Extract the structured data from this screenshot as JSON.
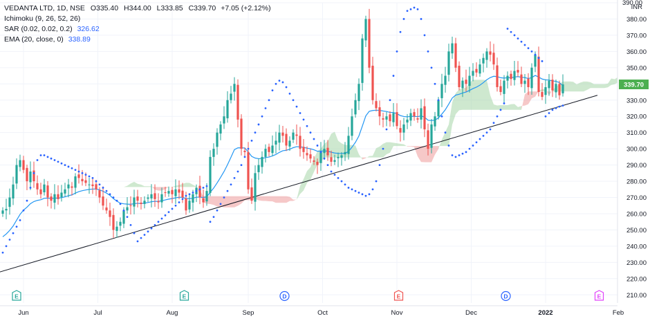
{
  "legend": {
    "symbol": "VEDANTA LTD, 1D, NSE",
    "ohlc": [
      {
        "label": "O",
        "value": "335.40"
      },
      {
        "label": "H",
        "value": "344.00"
      },
      {
        "label": "L",
        "value": "333.85"
      },
      {
        "label": "C",
        "value": "339.70"
      }
    ],
    "change": "+7.05 (+2.12%)",
    "ichimoku_label": "Ichimoku (9, 26, 52, 26)",
    "sar_label": "SAR (0.02, 0.02, 0.2)",
    "sar_value": "326.62",
    "ema_label": "EMA (20, close, 0)",
    "ema_value": "338.89"
  },
  "chart_data": {
    "type": "candlestick",
    "currency": "INR",
    "ylim": [
      205,
      390
    ],
    "y_ticks": [
      "210.00",
      "220.00",
      "230.00",
      "240.00",
      "250.00",
      "260.00",
      "270.00",
      "280.00",
      "290.00",
      "300.00",
      "310.00",
      "320.00",
      "330.00",
      "340.00",
      "350.00",
      "360.00",
      "370.00",
      "380.00",
      "390.00"
    ],
    "x_ticks": [
      "Jun",
      "Jul",
      "Aug",
      "Sep",
      "Oct",
      "Nov",
      "Dec",
      "2022",
      "Feb"
    ],
    "x_tick_pos": [
      6,
      27.5,
      49,
      71,
      92.5,
      114,
      135.5,
      157,
      178
    ],
    "last_price_label": "339.70",
    "colors": {
      "up": "#26a69a",
      "down": "#ef5350",
      "ema": "#2196f3",
      "sar": "#2962ff",
      "cloud_bull": "#a5d6a7",
      "cloud_bear": "#ef9a9a",
      "trendline": "#131722",
      "last_price": "#4caf50",
      "event_earnings": "#26a69a",
      "event_dividend": "#2962ff",
      "event_earnings_down": "#ef5350",
      "event_future": "#e040fb"
    },
    "closes": [
      262,
      263,
      270,
      278,
      290,
      293,
      287,
      280,
      286,
      280,
      275,
      272,
      278,
      270,
      268,
      272,
      269,
      273,
      275,
      278,
      276,
      283,
      282,
      280,
      279,
      278,
      277,
      275,
      270,
      265,
      262,
      258,
      250,
      252,
      255,
      262,
      264,
      265,
      270,
      268,
      266,
      268,
      270,
      272,
      269,
      267,
      272,
      273,
      274,
      272,
      275,
      273,
      270,
      262,
      268,
      272,
      276,
      270,
      267,
      274,
      295,
      300,
      310,
      315,
      320,
      330,
      334,
      340,
      318,
      300,
      298,
      275,
      268,
      285,
      290,
      295,
      300,
      298,
      302,
      305,
      310,
      308,
      302,
      305,
      310,
      308,
      300,
      298,
      296,
      294,
      292,
      290,
      298,
      300,
      296,
      292,
      293,
      295,
      296,
      298,
      308,
      320,
      330,
      340,
      368,
      380,
      350,
      330,
      325,
      320,
      318,
      320,
      317,
      322,
      314,
      310,
      315,
      318,
      322,
      320,
      318,
      325,
      312,
      300,
      315,
      320,
      330,
      340,
      345,
      360,
      365,
      350,
      338,
      342,
      340,
      345,
      348,
      347,
      352,
      356,
      360,
      358,
      352,
      338,
      335,
      342,
      345,
      343,
      348,
      347,
      340,
      342,
      338,
      350,
      358,
      335,
      332,
      338,
      342,
      336,
      340,
      333,
      339.7
    ],
    "ema": [
      245.8,
      247.5,
      249.7,
      252.4,
      256.0,
      259.6,
      262.2,
      264.0,
      266.2,
      267.5,
      268.2,
      268.6,
      269.5,
      269.6,
      269.4,
      269.6,
      269.6,
      269.9,
      270.4,
      271.1,
      271.6,
      272.7,
      273.6,
      274.2,
      274.6,
      275.0,
      275.2,
      275.2,
      274.7,
      273.8,
      272.7,
      271.3,
      269.3,
      267.7,
      266.5,
      266.1,
      265.9,
      265.8,
      266.2,
      266.4,
      266.3,
      266.5,
      266.9,
      267.4,
      267.6,
      267.6,
      268.0,
      268.5,
      269.0,
      269.3,
      269.8,
      270.1,
      270.1,
      269.3,
      269.2,
      269.5,
      270.2,
      270.2,
      270.0,
      270.4,
      273.2,
      275.8,
      279.0,
      282.4,
      286.0,
      290.2,
      294.8,
      299.5,
      300.6,
      300.6,
      300.5,
      298.1,
      295.3,
      294.3,
      293.9,
      294.0,
      294.6,
      294.9,
      295.6,
      296.5,
      297.8,
      298.8,
      299.1,
      299.7,
      300.7,
      301.3,
      301.2,
      300.9,
      300.4,
      300.0,
      299.4,
      298.5,
      298.6,
      298.7,
      298.5,
      297.9,
      297.4,
      297.2,
      297.1,
      297.2,
      298.4,
      301.0,
      304.0,
      307.9,
      314.0,
      320.3,
      323.1,
      323.6,
      323.8,
      323.7,
      323.3,
      323.0,
      322.4,
      322.4,
      321.6,
      320.5,
      319.9,
      319.7,
      320.0,
      320.0,
      319.8,
      320.3,
      319.5,
      317.6,
      317.4,
      317.7,
      319.0,
      321.4,
      324.1,
      327.6,
      331.3,
      333.1,
      333.6,
      334.4,
      335.0,
      336.0,
      337.1,
      338.0,
      339.2,
      340.8,
      342.6,
      343.9,
      344.7,
      344.5,
      343.8,
      343.6,
      343.8,
      343.8,
      344.2,
      344.5,
      344.1,
      343.9,
      343.3,
      343.9,
      345.2,
      344.2,
      343.0,
      342.5,
      342.4,
      341.8,
      341.6,
      340.8,
      338.89
    ],
    "sar": [
      236,
      240,
      244,
      248,
      252,
      256,
      262,
      268,
      276,
      285,
      293,
      296,
      296,
      295,
      294,
      293,
      292,
      291,
      290,
      289,
      288,
      287,
      286,
      285,
      284,
      283,
      282,
      280,
      278,
      276,
      274,
      272,
      270,
      268,
      266,
      262,
      258,
      253,
      248,
      243,
      245,
      247,
      249,
      251,
      253,
      255,
      257,
      259,
      261,
      263,
      265,
      267,
      269,
      271,
      272,
      273,
      274,
      275,
      276,
      277,
      255,
      258,
      262,
      266,
      270,
      274,
      278,
      282,
      286,
      290,
      295,
      300,
      305,
      310,
      315,
      320,
      325,
      330,
      336,
      340,
      342,
      341,
      338,
      334,
      330,
      326,
      322,
      318,
      314,
      310,
      306,
      302,
      298,
      294,
      290,
      286,
      284,
      282,
      280,
      278,
      276,
      275,
      274,
      273,
      272,
      271,
      272,
      275,
      280,
      290,
      300,
      312,
      330,
      345,
      360,
      372,
      380,
      385,
      386,
      387,
      386,
      380,
      370,
      360,
      350,
      340,
      330,
      320,
      310,
      302,
      296,
      295,
      296,
      297,
      298,
      300,
      302,
      304,
      306,
      308,
      310,
      312,
      316,
      320,
      324,
      328,
      374,
      372,
      370,
      368,
      366,
      364,
      362,
      360,
      358,
      356,
      354,
      320,
      322,
      324,
      325,
      326,
      326.62
    ],
    "event_markers": [
      {
        "label": "E",
        "kind": "earnings"
      },
      {
        "label": "E",
        "kind": "earnings"
      },
      {
        "label": "D",
        "kind": "dividend"
      },
      {
        "label": "E",
        "kind": "earnings_down"
      },
      {
        "label": "D",
        "kind": "dividend"
      },
      {
        "label": "E",
        "kind": "future"
      }
    ]
  }
}
